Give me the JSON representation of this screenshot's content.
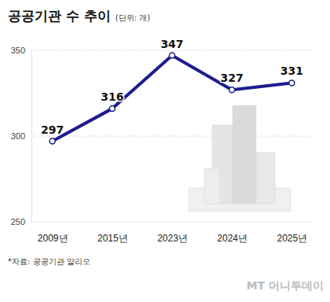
{
  "chart_data": {
    "type": "line",
    "title": "공공기관 수 추이",
    "subtitle": "(단위: 개)",
    "categories": [
      "2009년",
      "2015년",
      "2023년",
      "2024년",
      "2025년"
    ],
    "values": [
      297,
      316,
      347,
      327,
      331
    ],
    "color": "#1c1c8f",
    "ylim": [
      250,
      350
    ],
    "yticks": [
      250,
      300,
      350
    ],
    "grid": true,
    "data_labels": true,
    "marker": "circle",
    "source": "*자료: 공공기관 알리오",
    "credit": "MT 머니투데이"
  }
}
